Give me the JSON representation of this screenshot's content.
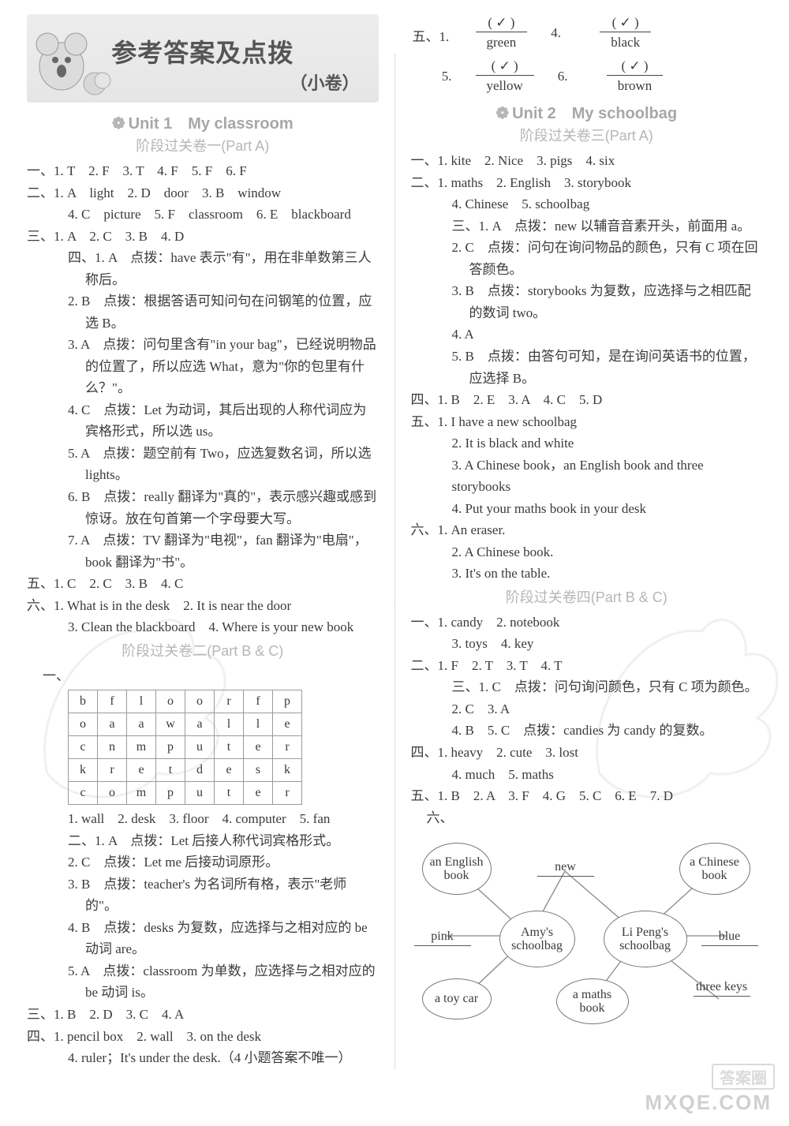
{
  "banner": {
    "title": "参考答案及点拨",
    "sub": "（小卷）"
  },
  "paw": "❁",
  "unit1": {
    "title": "Unit 1　My classroom",
    "stageA": "阶段过关卷一(Part A)",
    "stageB": "阶段过关卷二(Part B & C)"
  },
  "unit2": {
    "title": "Unit 2　My schoolbag",
    "stageA": "阶段过关卷三(Part A)",
    "stageB": "阶段过关卷四(Part B & C)"
  },
  "u1a": {
    "l1": "一、1. T　2. F　3. T　4. F　5. F　6. F",
    "l2a": "二、1. A　light　2. D　door　3. B　window",
    "l2b": "4. C　picture　5. F　classroom　6. E　blackboard",
    "l3": "三、1. A　2. C　3. B　4. D",
    "l4_1": "四、1. A　点拨：have 表示\"有\"，用在非单数第三人称后。",
    "l4_2": "2. B　点拨：根据答语可知问句在问钢笔的位置，应选 B。",
    "l4_3": "3. A　点拨：问句里含有\"in your bag\"，已经说明物品的位置了，所以应选 What，意为\"你的包里有什么？\"。",
    "l4_4": "4. C　点拨：Let 为动词，其后出现的人称代词应为宾格形式，所以选 us。",
    "l4_5": "5. A　点拨：题空前有 Two，应选复数名词，所以选 lights。",
    "l4_6": "6. B　点拨：really 翻译为\"真的\"，表示感兴趣或感到惊讶。放在句首第一个字母要大写。",
    "l4_7": "7. A　点拨：TV 翻译为\"电视\"，fan 翻译为\"电扇\"，book 翻译为\"书\"。",
    "l5": "五、1. C　2. C　3. B　4. C",
    "l6a": "六、1. What is in the desk　2. It is near the door",
    "l6b": "3. Clean the blackboard　4. Where is your new book"
  },
  "wordsearch": {
    "rows": [
      [
        "b",
        "f",
        "l",
        "o",
        "o",
        "r",
        "f",
        "p"
      ],
      [
        "o",
        "a",
        "a",
        "w",
        "a",
        "l",
        "l",
        "e"
      ],
      [
        "c",
        "n",
        "m",
        "p",
        "u",
        "t",
        "e",
        "r"
      ],
      [
        "k",
        "r",
        "e",
        "t",
        "d",
        "e",
        "s",
        "k"
      ],
      [
        "c",
        "o",
        "m",
        "p",
        "u",
        "t",
        "e",
        "r"
      ]
    ],
    "ans": "1. wall　2. desk　3. floor　4. computer　5. fan"
  },
  "u1b": {
    "l2_1": "二、1. A　点拨：Let 后接人称代词宾格形式。",
    "l2_2": "2. C　点拨：Let me 后接动词原形。",
    "l2_3": "3. B　点拨：teacher's 为名词所有格，表示\"老师的\"。",
    "l2_4": "4. B　点拨：desks 为复数，应选择与之相对应的 be 动词 are。",
    "l2_5": "5. A　点拨：classroom 为单数，应选择与之相对应的 be 动词 is。",
    "l3": "三、1. B　2. D　3. C　4. A",
    "l4a": "四、1. pencil box　2. wall　3. on the desk",
    "l4b": "4. ruler；It's under the desk.（4 小题答案不唯一）"
  },
  "fracs": {
    "label_row1_a": "五、1.",
    "label_row1_b": "4.",
    "r1a_top": "( ✓ )",
    "r1a_bot": "green",
    "r1b_top": "( ✓ )",
    "r1b_bot": "black",
    "label_row2_a": "5.",
    "label_row2_b": "6.",
    "r2a_top": "( ✓ )",
    "r2a_bot": "yellow",
    "r2b_top": "( ✓ )",
    "r2b_bot": "brown"
  },
  "u2a": {
    "l1": "一、1. kite　2. Nice　3. pigs　4. six",
    "l2a": "二、1. maths　2. English　3. storybook",
    "l2b": "4. Chinese　5. schoolbag",
    "l3_1": "三、1. A　点拨：new 以辅音音素开头，前面用 a。",
    "l3_2": "2. C　点拨：问句在询问物品的颜色，只有 C 项在回答颜色。",
    "l3_3": "3. B　点拨：storybooks 为复数，应选择与之相匹配的数词 two。",
    "l3_4": "4. A",
    "l3_5": "5. B　点拨：由答句可知，是在询问英语书的位置，应选择 B。",
    "l4": "四、1. B　2. E　3. A　4. C　5. D",
    "l5_1": "五、1. I have a new schoolbag",
    "l5_2": "2. It is black and white",
    "l5_3": "3. A Chinese book，an English book and three storybooks",
    "l5_4": "4. Put your maths book in your desk",
    "l6_1": "六、1. An eraser.",
    "l6_2": "2. A Chinese book.",
    "l6_3": "3. It's on the table."
  },
  "u2b": {
    "l1a": "一、1. candy　2. notebook",
    "l1b": "3. toys　4. key",
    "l2": "二、1. F　2. T　3. T　4. T",
    "l3_1": "三、1. C　点拨：问句询问颜色，只有 C 项为颜色。",
    "l3_2": "2. C　3. A",
    "l3_3": "4. B　5. C　点拨：candies 为 candy 的复数。",
    "l4a": "四、1. heavy　2. cute　3. lost",
    "l4b": "4. much　5. maths",
    "l5": "五、1. B　2. A　3. F　4. G　5. C　6. E　7. D",
    "l6": "六、"
  },
  "diagram": {
    "center_l": "Amy's schoolbag",
    "center_r": "Li Peng's schoolbag",
    "tl": "an English book",
    "tm": "new",
    "tr": "a Chinese book",
    "ml": "pink",
    "mr": "blue",
    "bl": "a toy car",
    "bm": "a maths book",
    "br": "three keys"
  },
  "watermark": {
    "site": "MXQE.COM",
    "badge": "答案圈"
  }
}
